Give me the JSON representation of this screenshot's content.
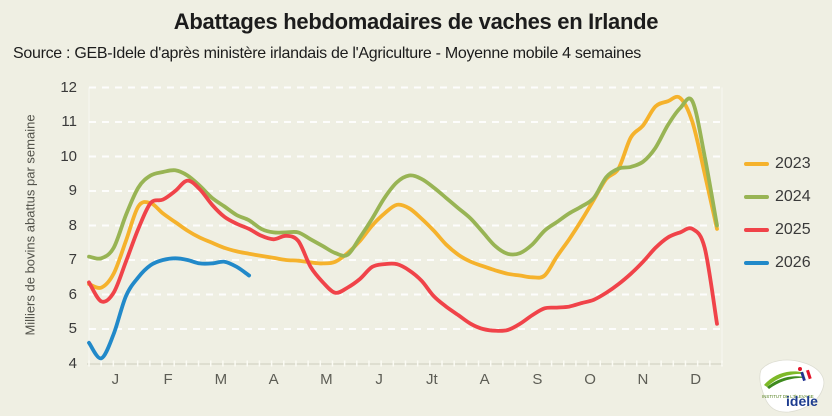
{
  "page": {
    "background": "#EFEFE3"
  },
  "chart_data": {
    "type": "line",
    "title": "Abattages hebdomadaires de vaches en Irlande",
    "subtitle": "Source : GEB-Idele d'après ministère irlandais de l'Agriculture - Moyenne mobile 4 semaines",
    "ylabel": "Milliers de bovins abattus par semaine",
    "ylim": [
      4,
      12
    ],
    "yticks": [
      4,
      5,
      6,
      7,
      8,
      9,
      10,
      11,
      12
    ],
    "x_unit": "week",
    "month_labels": [
      "J",
      "F",
      "M",
      "A",
      "M",
      "J",
      "Jt",
      "A",
      "S",
      "O",
      "N",
      "D"
    ],
    "grid": "horizontal-dashed-white",
    "legend_position": "right",
    "series": [
      {
        "name": "2023",
        "color": "#F5B22C",
        "values": [
          6.3,
          6.2,
          6.6,
          7.55,
          8.55,
          8.65,
          8.35,
          8.1,
          7.85,
          7.65,
          7.5,
          7.35,
          7.25,
          7.18,
          7.12,
          7.06,
          7.0,
          6.98,
          6.93,
          6.9,
          6.95,
          7.2,
          7.55,
          8.0,
          8.35,
          8.6,
          8.5,
          8.2,
          7.85,
          7.45,
          7.15,
          6.95,
          6.82,
          6.7,
          6.6,
          6.55,
          6.5,
          6.55,
          7.1,
          7.6,
          8.15,
          8.75,
          9.35,
          9.65,
          10.55,
          10.9,
          11.45,
          11.6,
          11.7,
          11.0,
          9.5,
          7.9
        ]
      },
      {
        "name": "2024",
        "color": "#98B454",
        "values": [
          7.1,
          7.05,
          7.35,
          8.3,
          9.1,
          9.45,
          9.55,
          9.6,
          9.45,
          9.15,
          8.8,
          8.55,
          8.3,
          8.15,
          7.9,
          7.8,
          7.8,
          7.8,
          7.6,
          7.4,
          7.2,
          7.15,
          7.65,
          8.2,
          8.8,
          9.25,
          9.45,
          9.35,
          9.1,
          8.8,
          8.5,
          8.2,
          7.8,
          7.4,
          7.18,
          7.2,
          7.45,
          7.85,
          8.1,
          8.35,
          8.55,
          8.8,
          9.4,
          9.65,
          9.7,
          9.85,
          10.25,
          10.9,
          11.4,
          11.6,
          10.0,
          8.0
        ]
      },
      {
        "name": "2025",
        "color": "#F04349",
        "values": [
          6.35,
          5.8,
          6.05,
          6.95,
          7.9,
          8.65,
          8.75,
          9.0,
          9.3,
          9.05,
          8.6,
          8.25,
          8.05,
          7.9,
          7.7,
          7.6,
          7.7,
          7.55,
          6.8,
          6.35,
          6.05,
          6.2,
          6.45,
          6.8,
          6.88,
          6.88,
          6.7,
          6.4,
          5.95,
          5.65,
          5.4,
          5.15,
          5.0,
          4.95,
          4.97,
          5.15,
          5.4,
          5.6,
          5.62,
          5.65,
          5.75,
          5.85,
          6.05,
          6.3,
          6.6,
          6.95,
          7.35,
          7.65,
          7.8,
          7.9,
          7.35,
          5.15
        ]
      },
      {
        "name": "2026",
        "color": "#2189C9",
        "values": [
          4.6,
          4.15,
          4.85,
          5.95,
          6.5,
          6.85,
          7.0,
          7.05,
          7.0,
          6.9,
          6.9,
          6.95,
          6.8,
          6.55
        ]
      }
    ]
  },
  "logo": {
    "brand": "idele",
    "caption": "INSTITUT DE L'ÉLEVAGE"
  }
}
